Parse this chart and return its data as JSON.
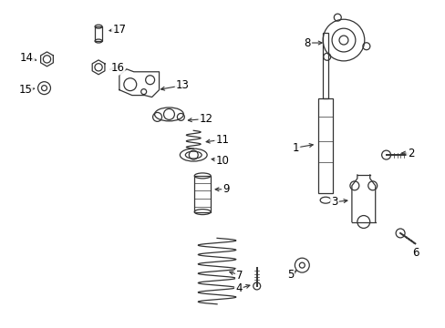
{
  "background_color": "#ffffff",
  "line_color": "#333333",
  "figsize": [
    4.89,
    3.6
  ],
  "dpi": 100,
  "leaders": [
    [
      "1",
      325,
      162,
      348,
      158
    ],
    [
      "2",
      452,
      168,
      438,
      168
    ],
    [
      "3",
      368,
      222,
      386,
      220
    ],
    [
      "4",
      262,
      318,
      278,
      313
    ],
    [
      "5",
      319,
      302,
      329,
      296
    ],
    [
      "6",
      458,
      278,
      452,
      274
    ],
    [
      "7",
      263,
      303,
      248,
      298
    ],
    [
      "8",
      338,
      46,
      358,
      46
    ],
    [
      "9",
      248,
      208,
      232,
      208
    ],
    [
      "10",
      244,
      176,
      228,
      174
    ],
    [
      "11",
      244,
      153,
      222,
      156
    ],
    [
      "12",
      226,
      130,
      202,
      132
    ],
    [
      "13",
      200,
      93,
      172,
      98
    ],
    [
      "14",
      28,
      63,
      42,
      66
    ],
    [
      "15",
      26,
      98,
      40,
      96
    ],
    [
      "16",
      128,
      74,
      116,
      76
    ],
    [
      "17",
      130,
      31,
      115,
      33
    ]
  ]
}
